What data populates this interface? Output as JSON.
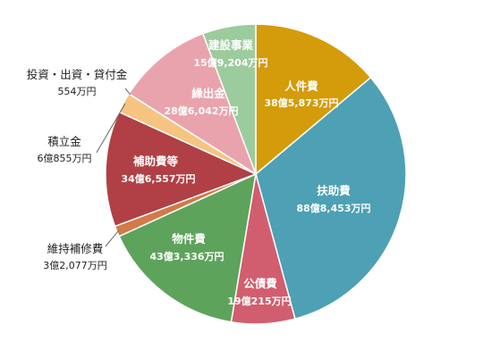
{
  "chart_data": {
    "type": "pie",
    "unit": "億円",
    "title": "",
    "legend": "none",
    "slices": [
      {
        "name": "人件費",
        "value_text": "38億5,873万円",
        "value": 38.5873,
        "color": "#D49B0A"
      },
      {
        "name": "扶助費",
        "value_text": "88億8,453万円",
        "value": 88.8453,
        "color": "#4EA0B4"
      },
      {
        "name": "公債費",
        "value_text": "19億215万円",
        "value": 19.0215,
        "color": "#D15E6E"
      },
      {
        "name": "物件費",
        "value_text": "43億3,336万円",
        "value": 43.3336,
        "color": "#5EA35C"
      },
      {
        "name": "維持補修費",
        "value_text": "3億2,077万円",
        "value": 3.2077,
        "color": "#D27A48"
      },
      {
        "name": "補助費等",
        "value_text": "34億6,557万円",
        "value": 34.6557,
        "color": "#B04045"
      },
      {
        "name": "積立金",
        "value_text": "6億855万円",
        "value": 6.0855,
        "color": "#F6C480"
      },
      {
        "name": "投資・出資・貸付金",
        "value_text": "554万円",
        "value": 0.0554,
        "color": "#8C8C8C"
      },
      {
        "name": "繰出金",
        "value_text": "28億6,042万円",
        "value": 28.6042,
        "color": "#E9A3AC"
      },
      {
        "name": "建設事業",
        "value_text": "15億9,204万円",
        "value": 15.9204,
        "color": "#9CCB9D"
      }
    ]
  }
}
